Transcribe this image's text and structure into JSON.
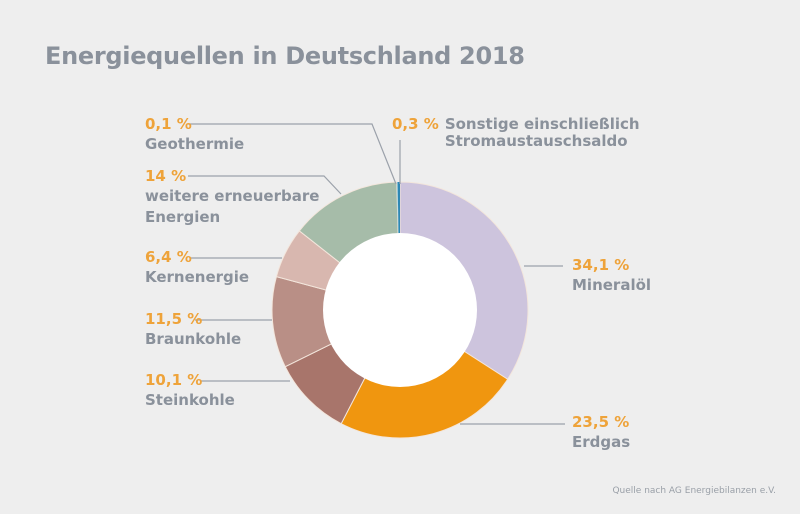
{
  "chart_data": {
    "type": "pie",
    "variant": "donut",
    "title": "Energiequellen in Deutschland 2018",
    "source": "Quelle nach AG Energiebilanzen e.V.",
    "unit": "%",
    "slices": [
      {
        "name": "Mineralöl",
        "name_lines": [
          "Mineralöl"
        ],
        "value": 34.1,
        "label": "34,1 %",
        "color": "#cdc4dd"
      },
      {
        "name": "Erdgas",
        "name_lines": [
          "Erdgas"
        ],
        "value": 23.5,
        "label": "23,5 %",
        "color": "#f0960f"
      },
      {
        "name": "Steinkohle",
        "name_lines": [
          "Steinkohle"
        ],
        "value": 10.1,
        "label": "10,1 %",
        "color": "#a8756b"
      },
      {
        "name": "Braunkohle",
        "name_lines": [
          "Braunkohle"
        ],
        "value": 11.5,
        "label": "11,5 %",
        "color": "#b98f86"
      },
      {
        "name": "Kernenergie",
        "name_lines": [
          "Kernenergie"
        ],
        "value": 6.4,
        "label": "6,4 %",
        "color": "#d8b7af"
      },
      {
        "name": "weitere erneuerbare Energien",
        "name_lines": [
          "weitere erneuerbare",
          "Energien"
        ],
        "value": 14,
        "label": "14 %",
        "color": "#a6bca9"
      },
      {
        "name": "Geothermie",
        "name_lines": [
          "Geothermie"
        ],
        "value": 0.1,
        "label": "0,1 %",
        "color": "#a9d6e0"
      },
      {
        "name": "Sonstige einschließlich Stromaustauschsaldo",
        "name_lines": [
          "Sonstige einschließlich",
          "Stromaustauschsaldo"
        ],
        "value": 0.3,
        "label": "0,3 %",
        "color": "#2e88b4"
      }
    ],
    "legend": "none (direct labels with leader lines)"
  },
  "colors": {
    "background": "#eeeeee",
    "value_text": "#eea33a",
    "label_text": "#8a919b",
    "leader_line": "#9ba1aa"
  }
}
